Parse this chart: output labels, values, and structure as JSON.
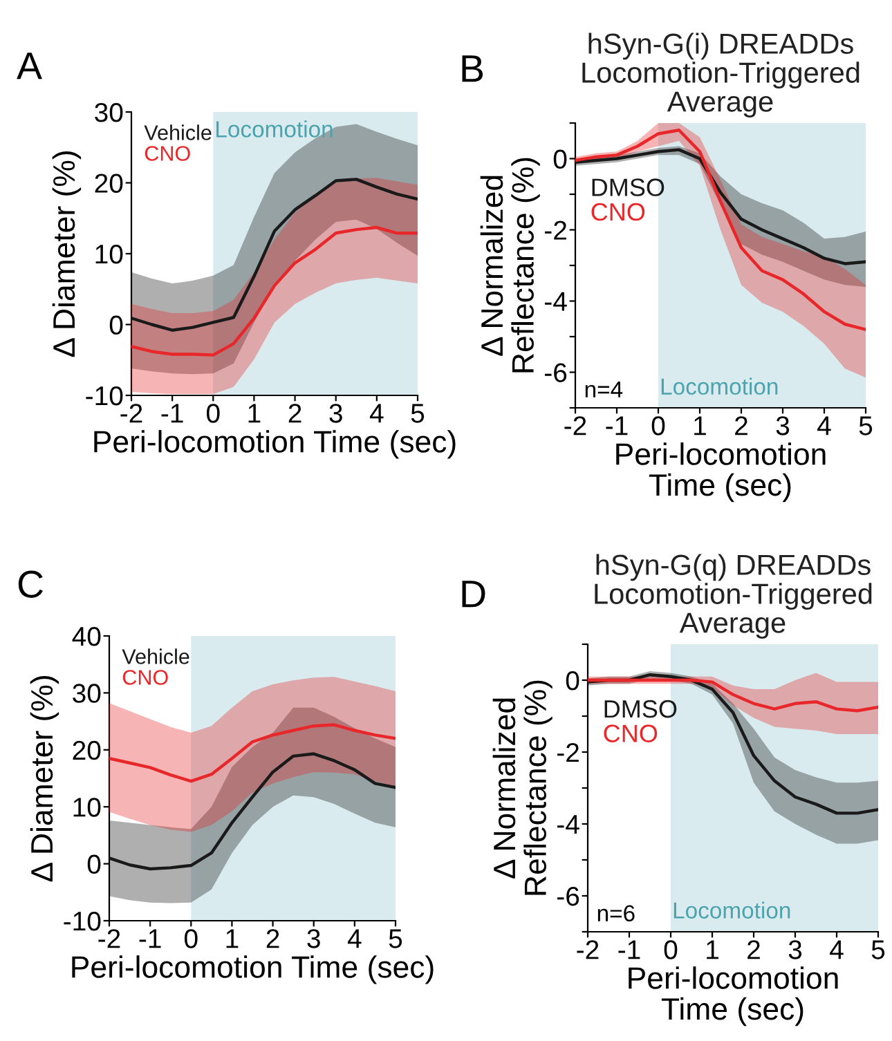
{
  "chart_data": [
    {
      "type": "line",
      "xlabel": "Peri-locomotion Time (sec)",
      "ylabel": "Δ Diameter (%)",
      "annotations": [
        "A"
      ],
      "legend": "top left",
      "x": [
        -2,
        -1.5,
        -1,
        -0.5,
        0,
        0.5,
        1,
        1.5,
        2,
        2.5,
        3,
        3.5,
        4,
        4.5,
        5
      ],
      "xlim": [
        -2,
        5
      ],
      "xticks": [
        -2,
        -1,
        0,
        1,
        2,
        3,
        4,
        5
      ],
      "ylim": [
        -10,
        30
      ],
      "yticks": [
        -10,
        0,
        10,
        20,
        30
      ],
      "bands": [
        {
          "axis": "x",
          "from": 0,
          "to": 5,
          "label": "Locomotion",
          "color": "#d9ebee"
        }
      ],
      "series": [
        {
          "name": "Vehicle",
          "color": "#1a1a1a",
          "values": [
            0.9,
            0,
            -0.8,
            -0.4,
            0.3,
            1,
            6.8,
            13.2,
            16.2,
            18.2,
            20.3,
            20.5,
            19.4,
            18.4,
            17.7
          ],
          "lower": [
            -6.2,
            -6.6,
            -6.9,
            -7,
            -6.9,
            -5.5,
            0.3,
            5.5,
            9,
            12,
            14.5,
            14.8,
            13.5,
            11.5,
            9.7
          ],
          "upper": [
            7.4,
            6.5,
            5.8,
            6.2,
            6.9,
            8.4,
            15.2,
            21.4,
            24.3,
            26.3,
            27.9,
            28.3,
            27.2,
            26.2,
            25.3
          ]
        },
        {
          "name": "CNO",
          "color": "#e8272a",
          "values": [
            -3.1,
            -3.8,
            -4.2,
            -4.2,
            -4.3,
            -2.7,
            0.9,
            5.5,
            8.7,
            10.6,
            12.9,
            13.4,
            13.7,
            12.9,
            12.9
          ],
          "lower": [
            -9.5,
            -9.7,
            -9.8,
            -9.8,
            -9.8,
            -8.8,
            -4.9,
            0.3,
            2.9,
            4.5,
            5.8,
            6.3,
            6.6,
            6.2,
            5.8
          ],
          "upper": [
            2.9,
            2.2,
            1.6,
            1.6,
            1.9,
            3.5,
            7.4,
            12,
            15.8,
            18.2,
            20,
            20.6,
            20.7,
            20.2,
            19.7
          ]
        }
      ]
    },
    {
      "type": "line",
      "title": "hSyn-G(i) DREADDs\nLocomotion-Triggered\nAverage",
      "xlabel": "Peri-locomotion\nTime (sec)",
      "ylabel": "Δ Normalized\nReflectance (%)",
      "annotations": [
        "B",
        "n=4"
      ],
      "legend": "left",
      "x": [
        -2,
        -1.5,
        -1,
        -0.5,
        0,
        0.5,
        1,
        1.5,
        2,
        2.5,
        3,
        3.5,
        4,
        4.5,
        5
      ],
      "xlim": [
        -2,
        5
      ],
      "xticks": [
        -2,
        -1,
        0,
        1,
        2,
        3,
        4,
        5
      ],
      "ylim": [
        -7,
        1
      ],
      "yticks": [
        {
          "value": -7,
          "label": null
        },
        -6,
        {
          "value": -5,
          "label": null
        },
        -4,
        {
          "value": -3,
          "label": null
        },
        -2,
        {
          "value": -1,
          "label": null
        },
        0,
        {
          "value": 1,
          "label": null
        }
      ],
      "bands": [
        {
          "axis": "x",
          "from": 0,
          "to": 5,
          "label": "Locomotion",
          "color": "#d9ebee"
        }
      ],
      "series": [
        {
          "name": "DMSO",
          "color": "#1a1a1a",
          "values": [
            -0.1,
            -0.05,
            0,
            0.1,
            0.2,
            0.25,
            0,
            -0.95,
            -1.7,
            -2,
            -2.25,
            -2.5,
            -2.8,
            -2.95,
            -2.9
          ],
          "lower": [
            -0.2,
            -0.15,
            -0.1,
            0,
            0.1,
            0.1,
            -0.15,
            -1.3,
            -2.4,
            -2.7,
            -2.9,
            -3.15,
            -3.4,
            -3.55,
            -3.6
          ],
          "upper": [
            0,
            0.05,
            0.1,
            0.2,
            0.3,
            0.35,
            0.15,
            -0.5,
            -1,
            -1.25,
            -1.45,
            -1.8,
            -2.25,
            -2.2,
            -2.05
          ]
        },
        {
          "name": "CNO",
          "color": "#e8272a",
          "values": [
            -0.05,
            0.05,
            0.1,
            0.35,
            0.7,
            0.8,
            0.2,
            -1.2,
            -2.5,
            -3.15,
            -3.4,
            -3.8,
            -4.3,
            -4.65,
            -4.8
          ],
          "lower": [
            -0.15,
            -0.05,
            0,
            0.2,
            0.35,
            0.5,
            -0.2,
            -2,
            -3.55,
            -4.05,
            -4.3,
            -4.7,
            -5.2,
            -5.9,
            -6.15
          ],
          "upper": [
            0.05,
            0.15,
            0.2,
            0.5,
            1,
            1,
            0.6,
            -0.6,
            -1.85,
            -2.2,
            -2.4,
            -2.6,
            -2.75,
            -3.1,
            -3.55
          ]
        }
      ]
    },
    {
      "type": "line",
      "xlabel": "Peri-locomotion Time (sec)",
      "ylabel": "Δ Diameter (%)",
      "annotations": [
        "C"
      ],
      "legend": "top left",
      "x": [
        -2,
        -1.5,
        -1,
        -0.5,
        0,
        0.5,
        1,
        1.5,
        2,
        2.5,
        3,
        3.5,
        4,
        4.5,
        5
      ],
      "xlim": [
        -2,
        5
      ],
      "xticks": [
        -2,
        -1,
        0,
        1,
        2,
        3,
        4,
        5
      ],
      "ylim": [
        -10,
        40
      ],
      "yticks": [
        -10,
        0,
        10,
        20,
        30,
        40
      ],
      "bands": [
        {
          "axis": "x",
          "from": 0,
          "to": 5,
          "color": "#d9ebee"
        }
      ],
      "series": [
        {
          "name": "Vehicle",
          "color": "#1a1a1a",
          "values": [
            1,
            -0.2,
            -0.9,
            -0.7,
            -0.3,
            1.9,
            7.2,
            11.7,
            16.1,
            18.9,
            19.3,
            18.1,
            16.5,
            14.1,
            13.4
          ],
          "lower": [
            -5.7,
            -6.4,
            -6.8,
            -6.9,
            -6.8,
            -4.5,
            1.9,
            6.8,
            10,
            12,
            11.7,
            10.5,
            8.8,
            7.2,
            6.4
          ],
          "upper": [
            7.6,
            7.2,
            6.8,
            6.4,
            6.1,
            10,
            17,
            20.5,
            23,
            27.4,
            27.4,
            25.8,
            23.8,
            22,
            20.5
          ]
        },
        {
          "name": "CNO",
          "color": "#e8272a",
          "values": [
            18.5,
            17.7,
            16.9,
            15.6,
            14.5,
            15.7,
            18.5,
            21.4,
            22.6,
            23.4,
            24.2,
            24.4,
            23.4,
            22.6,
            22
          ],
          "lower": [
            9.1,
            7.9,
            6.8,
            6,
            5.6,
            6.8,
            9.2,
            12.5,
            14.1,
            15.2,
            16.1,
            16,
            15.7,
            14.5,
            13.5
          ],
          "upper": [
            28.2,
            26.8,
            25.4,
            24,
            23,
            24.2,
            27.4,
            30.3,
            31.5,
            32.2,
            32.7,
            32.8,
            32,
            31.2,
            30.3
          ]
        }
      ]
    },
    {
      "type": "line",
      "title": "hSyn-G(q) DREADDs\nLocomotion-Triggered\nAverage",
      "xlabel": "Peri-locomotion\nTime (sec)",
      "ylabel": "Δ Normalized\nReflectance (%)",
      "annotations": [
        "D",
        "n=6"
      ],
      "legend": "left",
      "x": [
        -2,
        -1.5,
        -1,
        -0.5,
        0,
        0.5,
        1,
        1.5,
        2,
        2.5,
        3,
        3.5,
        4,
        4.5,
        5
      ],
      "xlim": [
        -2,
        5
      ],
      "xticks": [
        -2,
        -1,
        0,
        1,
        2,
        3,
        4,
        5
      ],
      "ylim": [
        -7,
        1
      ],
      "yticks": [
        {
          "value": -7,
          "label": null
        },
        -6,
        {
          "value": -5,
          "label": null
        },
        -4,
        {
          "value": -3,
          "label": null
        },
        -2,
        {
          "value": -1,
          "label": null
        },
        0,
        {
          "value": 1,
          "label": null
        }
      ],
      "bands": [
        {
          "axis": "x",
          "from": 0,
          "to": 5,
          "label": "Locomotion",
          "color": "#d9ebee"
        }
      ],
      "series": [
        {
          "name": "DMSO",
          "color": "#1a1a1a",
          "values": [
            -0.05,
            0,
            0,
            0.15,
            0.1,
            0,
            -0.25,
            -0.9,
            -2.1,
            -2.8,
            -3.25,
            -3.45,
            -3.7,
            -3.7,
            -3.6
          ],
          "lower": [
            -0.15,
            -0.1,
            -0.1,
            0.05,
            0,
            -0.1,
            -0.4,
            -1.2,
            -2.85,
            -3.65,
            -4,
            -4.3,
            -4.55,
            -4.55,
            -4.45
          ],
          "upper": [
            0.05,
            0.1,
            0.1,
            0.25,
            0.2,
            0.1,
            -0.1,
            -0.65,
            -1.35,
            -2.15,
            -2.5,
            -2.7,
            -2.85,
            -2.85,
            -2.8
          ]
        },
        {
          "name": "CNO",
          "color": "#e8272a",
          "values": [
            0,
            0,
            0,
            0,
            0,
            0,
            -0.05,
            -0.4,
            -0.65,
            -0.8,
            -0.65,
            -0.6,
            -0.8,
            -0.85,
            -0.75
          ],
          "lower": [
            -0.1,
            -0.1,
            -0.1,
            -0.1,
            -0.1,
            -0.1,
            -0.2,
            -0.7,
            -1.05,
            -1.3,
            -1.35,
            -1.4,
            -1.5,
            -1.5,
            -1.5
          ],
          "upper": [
            0.1,
            0.1,
            0.1,
            0.1,
            0.1,
            0.1,
            0.1,
            -0.15,
            -0.25,
            -0.25,
            0,
            0.2,
            -0.05,
            -0.05,
            -0.05
          ]
        }
      ]
    }
  ]
}
